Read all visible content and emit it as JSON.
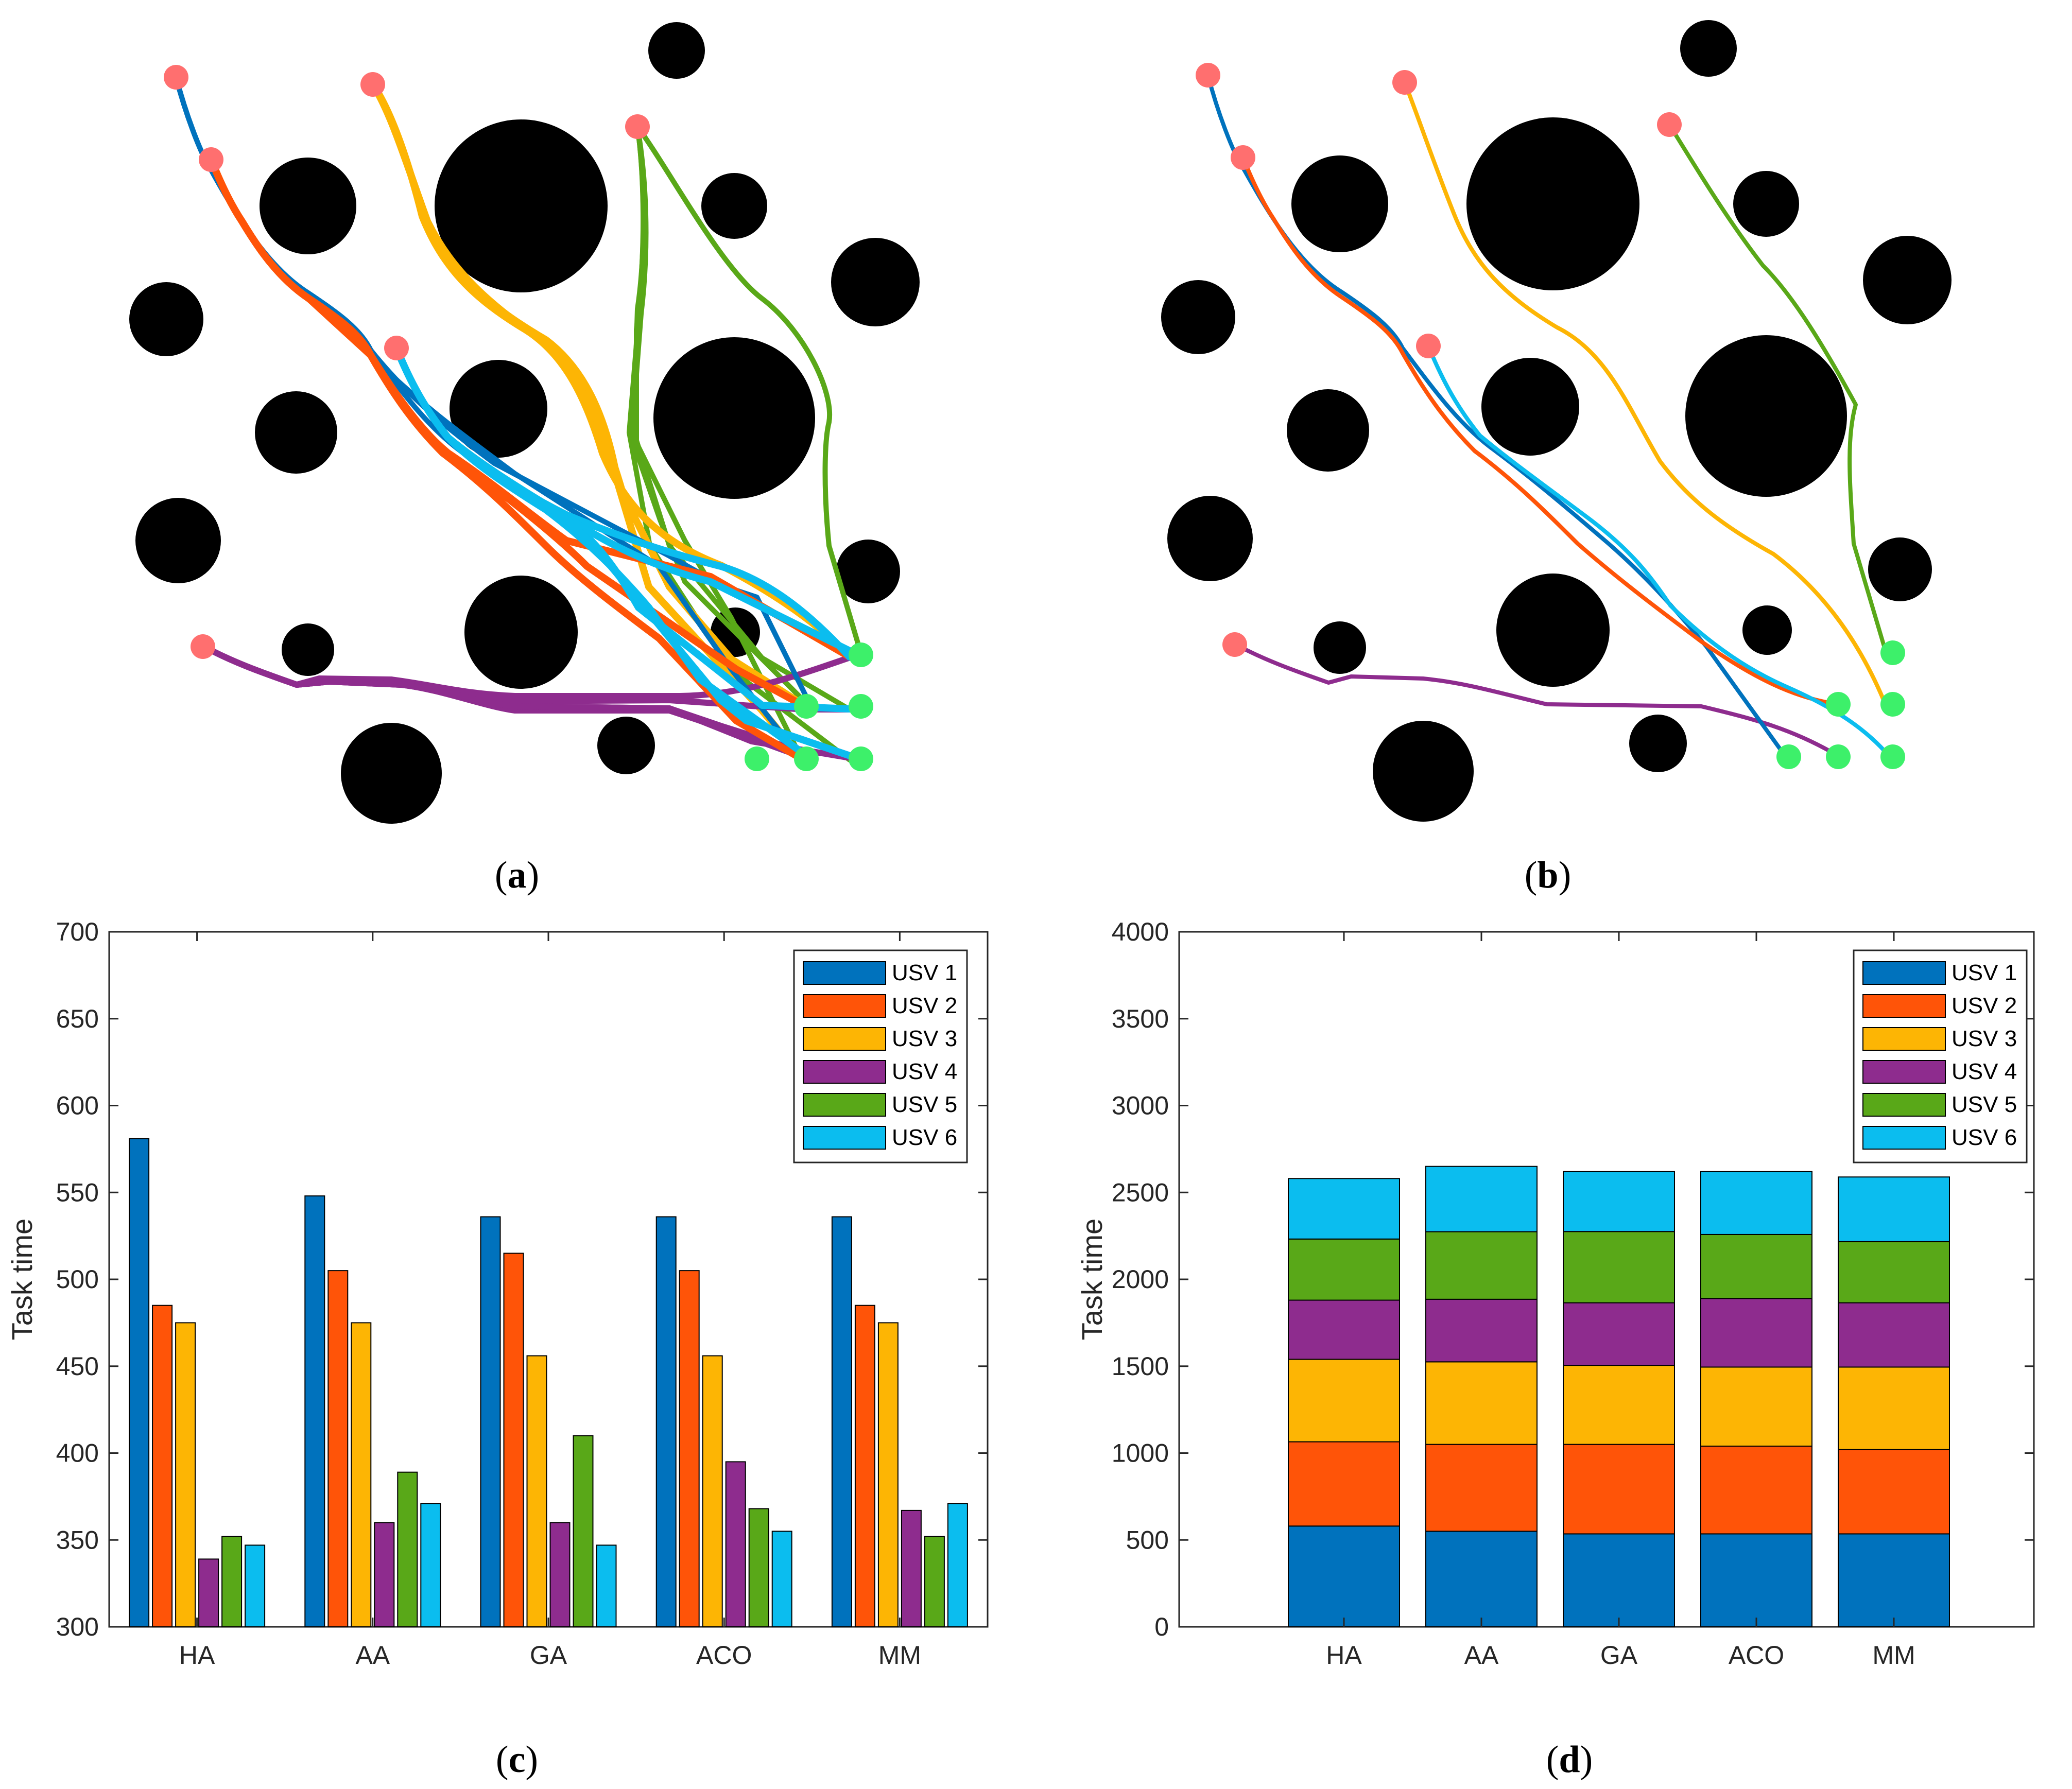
{
  "panel_labels": {
    "a": "a",
    "b": "b",
    "c": "c",
    "d": "d"
  },
  "colors": {
    "USV 1": "#0072BD",
    "USV 2": "#FF5408",
    "USV 3": "#FDB504",
    "USV 4": "#8E2C8E",
    "USV 5": "#59A818",
    "USV 6": "#0BBDEF",
    "start": "#FF6F6F",
    "goal": "#3DF06A",
    "obstacle": "#000000"
  },
  "chart_data": [
    {
      "id": "a",
      "type": "scatter",
      "title": "",
      "description": "USV path planning map with obstacles; many candidate paths",
      "grid": false
    },
    {
      "id": "b",
      "type": "scatter",
      "title": "",
      "description": "USV path planning map with obstacles; final single paths",
      "grid": false
    },
    {
      "id": "c",
      "type": "bar",
      "title": "",
      "xlabel": "",
      "ylabel": "Task time",
      "ylim": [
        300,
        700
      ],
      "yticks": [
        300,
        350,
        400,
        450,
        500,
        550,
        600,
        650,
        700
      ],
      "categories": [
        "HA",
        "AA",
        "GA",
        "ACO",
        "MM"
      ],
      "legend": "top-right",
      "series": [
        {
          "name": "USV 1",
          "values": [
            581,
            548,
            536,
            536,
            536
          ]
        },
        {
          "name": "USV 2",
          "values": [
            485,
            505,
            515,
            505,
            485
          ]
        },
        {
          "name": "USV 3",
          "values": [
            475,
            475,
            456,
            456,
            475
          ]
        },
        {
          "name": "USV 4",
          "values": [
            339,
            360,
            360,
            395,
            367
          ]
        },
        {
          "name": "USV 5",
          "values": [
            352,
            389,
            410,
            368,
            352
          ]
        },
        {
          "name": "USV 6",
          "values": [
            347,
            371,
            347,
            355,
            371
          ]
        }
      ]
    },
    {
      "id": "d",
      "type": "bar",
      "stacked": true,
      "title": "",
      "xlabel": "",
      "ylabel": "Task time",
      "ylim": [
        0,
        4000
      ],
      "yticks": [
        0,
        500,
        1000,
        1500,
        2000,
        2500,
        3000,
        3500,
        4000
      ],
      "categories": [
        "HA",
        "AA",
        "GA",
        "ACO",
        "MM"
      ],
      "legend": "top-right",
      "series": [
        {
          "name": "USV 1",
          "values": [
            580,
            550,
            535,
            535,
            535
          ]
        },
        {
          "name": "USV 2",
          "values": [
            485,
            500,
            515,
            505,
            485
          ]
        },
        {
          "name": "USV 3",
          "values": [
            475,
            475,
            455,
            455,
            475
          ]
        },
        {
          "name": "USV 4",
          "values": [
            340,
            360,
            360,
            395,
            370
          ]
        },
        {
          "name": "USV 5",
          "values": [
            352,
            389,
            410,
            368,
            352
          ]
        },
        {
          "name": "USV 6",
          "values": [
            348,
            376,
            345,
            362,
            372
          ]
        }
      ]
    }
  ]
}
